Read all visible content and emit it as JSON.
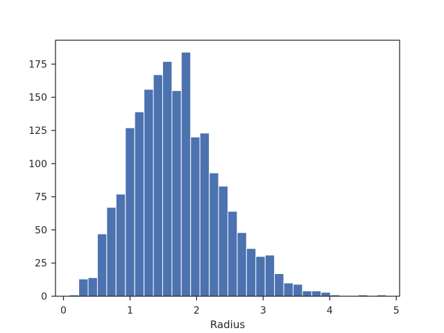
{
  "chart_data": {
    "type": "bar",
    "title": "",
    "xlabel": "Radius",
    "ylabel": "",
    "xlim": [
      -0.12,
      5.05
    ],
    "ylim": [
      0,
      193
    ],
    "grid": false,
    "legend": "none",
    "bar_color": "#4c72b0",
    "bar_edge_color": "#ffffff",
    "axes_color": "#262626",
    "x_ticks": [
      0,
      1,
      2,
      3,
      4,
      5
    ],
    "x_tick_labels": [
      "0",
      "1",
      "2",
      "3",
      "4",
      "5"
    ],
    "y_ticks": [
      0,
      25,
      50,
      75,
      100,
      125,
      150,
      175
    ],
    "y_tick_labels": [
      "0",
      "25",
      "50",
      "75",
      "100",
      "125",
      "150",
      "175"
    ],
    "bin_edges": [
      0.09,
      0.23,
      0.37,
      0.51,
      0.65,
      0.79,
      0.93,
      1.07,
      1.21,
      1.35,
      1.49,
      1.63,
      1.77,
      1.91,
      2.05,
      2.19,
      2.33,
      2.47,
      2.61,
      2.75,
      2.89,
      3.03,
      3.17,
      3.31,
      3.45,
      3.59,
      3.73,
      3.87,
      4.01,
      4.15,
      4.29,
      4.43,
      4.57,
      4.71,
      4.85
    ],
    "values": [
      1,
      13,
      14,
      47,
      67,
      77,
      127,
      139,
      156,
      167,
      177,
      155,
      184,
      120,
      123,
      93,
      83,
      64,
      48,
      36,
      30,
      31,
      17,
      10,
      9,
      4,
      4,
      3,
      1,
      0,
      0,
      1,
      0,
      1
    ]
  }
}
